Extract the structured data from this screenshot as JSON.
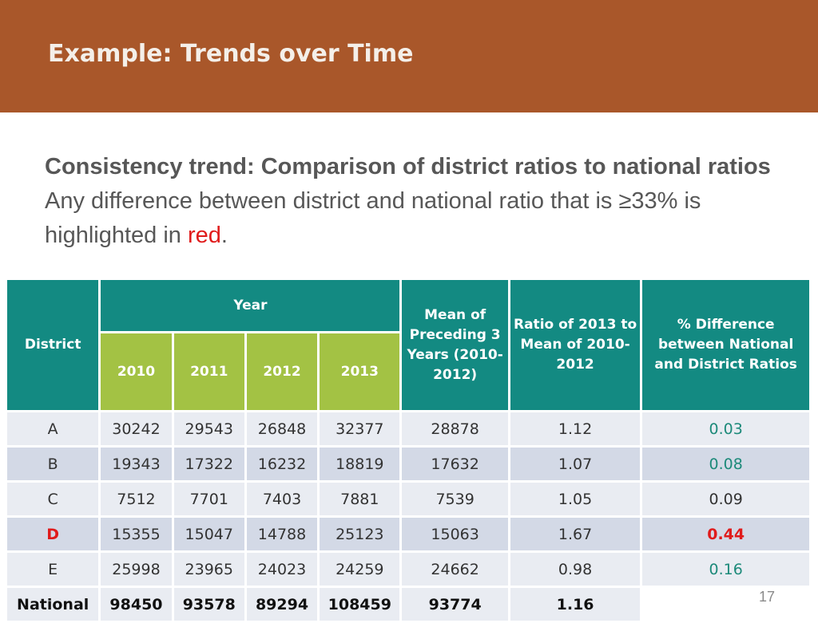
{
  "slide": {
    "title": "Example: Trends over Time",
    "heading": "Consistency trend: Comparison of district ratios to national ratios",
    "body_line1": "Any difference between district and national ratio that is ≥33% is",
    "body_line2_prefix": "highlighted in ",
    "body_red_word": "red",
    "body_line2_suffix": ".",
    "page_number": "17"
  },
  "colors": {
    "header_bar": "#a9572a",
    "table_header": "#138a82",
    "year_header": "#a3c244",
    "highlight_red": "#e01b1b",
    "highlight_green": "#1d8a7a"
  },
  "table": {
    "headers": {
      "district": "District",
      "year": "Year",
      "mean": "Mean of Preceding 3 Years (2010-2012)",
      "ratio": "Ratio of 2013 to Mean of 2010-2012",
      "pct_diff": "% Difference between National and District Ratios"
    },
    "years": [
      "2010",
      "2011",
      "2012",
      "2013"
    ],
    "rows": [
      {
        "district": "A",
        "y2010": "30242",
        "y2011": "29543",
        "y2012": "26848",
        "y2013": "32377",
        "mean": "28878",
        "ratio": "1.12",
        "pct_diff": "0.03"
      },
      {
        "district": "B",
        "y2010": "19343",
        "y2011": "17322",
        "y2012": "16232",
        "y2013": "18819",
        "mean": "17632",
        "ratio": "1.07",
        "pct_diff": "0.08"
      },
      {
        "district": "C",
        "y2010": "7512",
        "y2011": "7701",
        "y2012": "7403",
        "y2013": "7881",
        "mean": "7539",
        "ratio": "1.05",
        "pct_diff": "0.09"
      },
      {
        "district": "D",
        "y2010": "15355",
        "y2011": "15047",
        "y2012": "14788",
        "y2013": "25123",
        "mean": "15063",
        "ratio": "1.67",
        "pct_diff": "0.44"
      },
      {
        "district": "E",
        "y2010": "25998",
        "y2011": "23965",
        "y2012": "24023",
        "y2013": "24259",
        "mean": "24662",
        "ratio": "0.98",
        "pct_diff": "0.16"
      }
    ],
    "national": {
      "district": "National",
      "y2010": "98450",
      "y2011": "93578",
      "y2012": "89294",
      "y2013": "108459",
      "mean": "93774",
      "ratio": "1.16",
      "pct_diff": ""
    }
  }
}
